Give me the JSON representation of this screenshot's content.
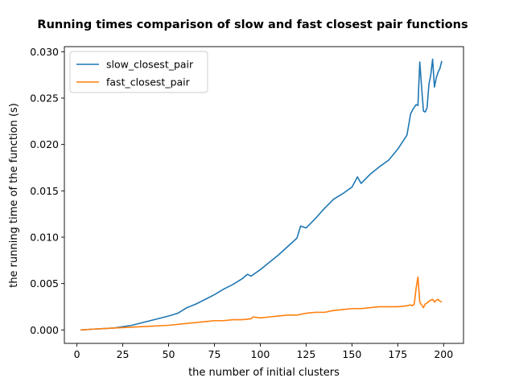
{
  "chart_data": {
    "type": "line",
    "title": "Running times comparison of slow and fast closest pair functions",
    "xlabel": "the number of initial clusters",
    "ylabel": "the running time of the function (s)",
    "xlim": [
      -6.85,
      210.85
    ],
    "ylim": [
      -0.00145,
      0.03055
    ],
    "xticks": [
      0,
      25,
      50,
      75,
      100,
      125,
      150,
      175,
      200
    ],
    "xtick_labels": [
      "0",
      "25",
      "50",
      "75",
      "100",
      "125",
      "150",
      "175",
      "200"
    ],
    "yticks": [
      0.0,
      0.005,
      0.01,
      0.015,
      0.02,
      0.025,
      0.03
    ],
    "ytick_labels": [
      "0.000",
      "0.005",
      "0.010",
      "0.015",
      "0.020",
      "0.025",
      "0.030"
    ],
    "grid": false,
    "legend_position": "upper left",
    "series": [
      {
        "name": "slow_closest_pair",
        "color": "#1f77b4",
        "x": [
          2,
          10,
          20,
          30,
          40,
          50,
          55,
          60,
          65,
          70,
          75,
          80,
          85,
          90,
          93,
          95,
          100,
          105,
          110,
          115,
          120,
          122,
          125,
          130,
          135,
          140,
          145,
          150,
          153,
          155,
          160,
          165,
          170,
          175,
          180,
          182,
          183,
          185,
          186,
          187,
          188,
          189,
          190,
          191,
          192,
          193,
          194,
          195,
          196,
          197,
          198,
          199
        ],
        "y": [
          0.0,
          0.0001,
          0.0002,
          0.0005,
          0.001,
          0.0015,
          0.0018,
          0.0024,
          0.0028,
          0.0033,
          0.0038,
          0.0044,
          0.0049,
          0.0055,
          0.006,
          0.0058,
          0.0065,
          0.0073,
          0.0081,
          0.009,
          0.0099,
          0.0112,
          0.011,
          0.012,
          0.0131,
          0.0141,
          0.0147,
          0.0154,
          0.0165,
          0.0158,
          0.0168,
          0.0176,
          0.0183,
          0.0195,
          0.021,
          0.0233,
          0.0237,
          0.0243,
          0.0242,
          0.0289,
          0.0262,
          0.0236,
          0.0235,
          0.024,
          0.0265,
          0.0275,
          0.0292,
          0.0262,
          0.0272,
          0.0278,
          0.0282,
          0.029
        ]
      },
      {
        "name": "fast_closest_pair",
        "color": "#ff7f0e",
        "x": [
          2,
          10,
          20,
          30,
          40,
          50,
          55,
          60,
          65,
          70,
          75,
          80,
          85,
          90,
          95,
          96,
          100,
          105,
          110,
          115,
          120,
          125,
          130,
          135,
          140,
          145,
          150,
          155,
          160,
          165,
          170,
          175,
          180,
          182,
          183,
          184,
          185,
          186,
          187,
          188,
          189,
          190,
          191,
          192,
          193,
          194,
          195,
          196,
          197,
          198,
          199
        ],
        "y": [
          0.0,
          0.0001,
          0.0002,
          0.0003,
          0.0004,
          0.0005,
          0.0006,
          0.0007,
          0.0008,
          0.0009,
          0.001,
          0.001,
          0.0011,
          0.0011,
          0.0012,
          0.0014,
          0.0013,
          0.0014,
          0.0015,
          0.0016,
          0.0016,
          0.0018,
          0.0019,
          0.0019,
          0.0021,
          0.0022,
          0.0023,
          0.0023,
          0.0024,
          0.0025,
          0.0025,
          0.0025,
          0.0026,
          0.0027,
          0.0026,
          0.0028,
          0.0045,
          0.0057,
          0.003,
          0.0027,
          0.0024,
          0.0028,
          0.0029,
          0.0031,
          0.0032,
          0.0033,
          0.003,
          0.0032,
          0.0033,
          0.0031,
          0.003
        ]
      }
    ]
  }
}
